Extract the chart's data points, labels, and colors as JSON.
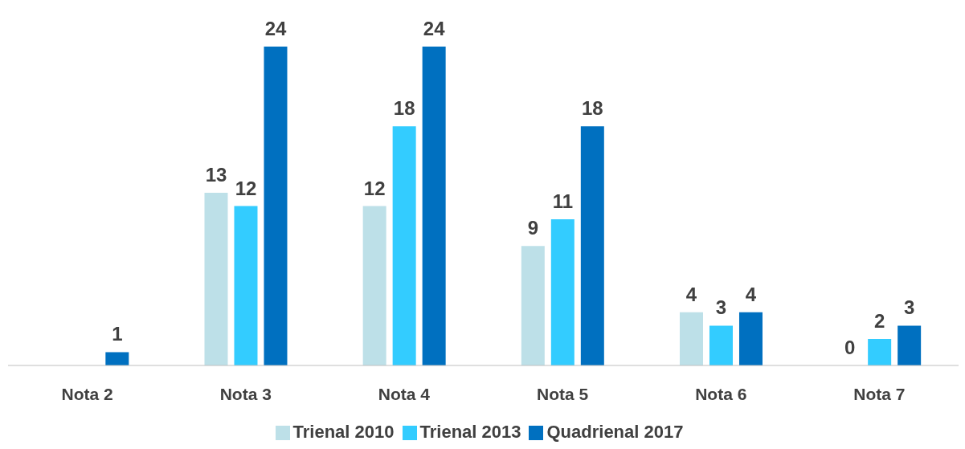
{
  "chart_data": {
    "type": "bar",
    "categories": [
      "Nota 2",
      "Nota 3",
      "Nota 4",
      "Nota 5",
      "Nota 6",
      "Nota 7"
    ],
    "series": [
      {
        "name": "Trienal 2010",
        "color": "#bde0e8",
        "values": [
          null,
          13,
          12,
          9,
          4,
          0
        ]
      },
      {
        "name": "Trienal 2013",
        "color": "#33ccff",
        "values": [
          null,
          12,
          18,
          11,
          3,
          2
        ]
      },
      {
        "name": "Quadrienal 2017",
        "color": "#0070c0",
        "values": [
          1,
          24,
          24,
          18,
          4,
          3
        ]
      }
    ],
    "data_labels": true,
    "legend": "bottom",
    "grid": false
  }
}
